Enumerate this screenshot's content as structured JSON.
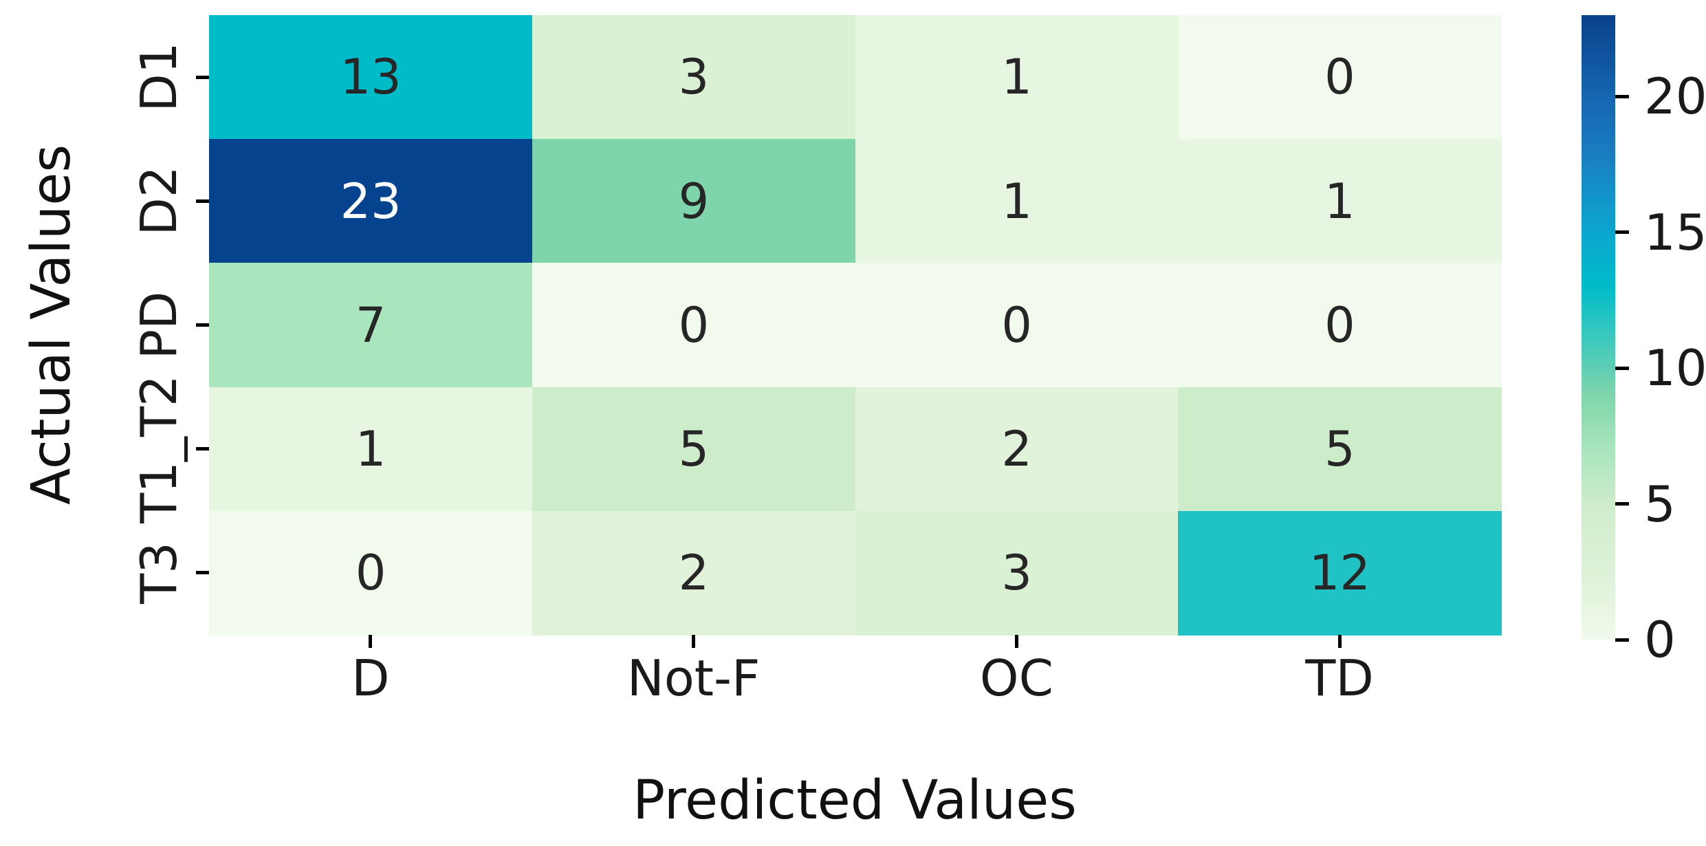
{
  "figure": {
    "background": "#ffffff"
  },
  "chart_data": {
    "type": "heatmap",
    "title": "",
    "xlabel": "Predicted Values",
    "ylabel": "Actual Values",
    "x_categories": [
      "D",
      "Not-F",
      "OC",
      "TD"
    ],
    "y_categories": [
      "D1",
      "D2",
      "PD",
      "T1_T2",
      "T3"
    ],
    "values": [
      [
        13,
        3,
        1,
        0
      ],
      [
        23,
        9,
        1,
        1
      ],
      [
        7,
        0,
        0,
        0
      ],
      [
        1,
        5,
        2,
        5
      ],
      [
        0,
        2,
        3,
        12
      ]
    ],
    "vmin": 0,
    "vmax": 23,
    "grid": false,
    "legend_position": "right-colorbar",
    "colorbar_ticks": [
      0,
      5,
      10,
      15,
      20
    ],
    "annotation_default_color": "#262626",
    "cell_colors": [
      [
        "#00bcc9",
        "#daf1d4",
        "#e7f6e1",
        "#f1faec"
      ],
      [
        "#05438f",
        "#7fd5ab",
        "#e7f6e1",
        "#e7f6e1"
      ],
      [
        "#a9e5bd",
        "#f1faec",
        "#f1faec",
        "#f1faec"
      ],
      [
        "#e7f6e1",
        "#cdecca",
        "#e1f3db",
        "#cdecca"
      ],
      [
        "#f1faec",
        "#e1f3db",
        "#daf1d4",
        "#1fc3c6"
      ]
    ],
    "cell_text_colors": [
      [
        "#262626",
        "#262626",
        "#262626",
        "#262626"
      ],
      [
        "#ffffff",
        "#262626",
        "#262626",
        "#262626"
      ],
      [
        "#262626",
        "#262626",
        "#262626",
        "#262626"
      ],
      [
        "#262626",
        "#262626",
        "#262626",
        "#262626"
      ],
      [
        "#262626",
        "#262626",
        "#262626",
        "#262626"
      ]
    ],
    "colormap_stops": [
      {
        "value": 0,
        "color": "#f1faec"
      },
      {
        "value": 2,
        "color": "#e1f3db"
      },
      {
        "value": 5,
        "color": "#cdecca"
      },
      {
        "value": 7,
        "color": "#a9e5bd"
      },
      {
        "value": 9,
        "color": "#7fd5ab"
      },
      {
        "value": 11,
        "color": "#3fc9bd"
      },
      {
        "value": 13,
        "color": "#00bcc9"
      },
      {
        "value": 15,
        "color": "#0ba6cf"
      },
      {
        "value": 18,
        "color": "#1a7cc0"
      },
      {
        "value": 20,
        "color": "#1566b0"
      },
      {
        "value": 23,
        "color": "#0a418c"
      }
    ]
  }
}
